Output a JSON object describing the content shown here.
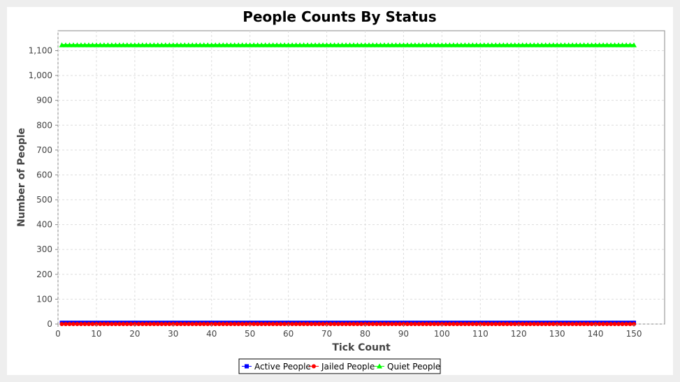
{
  "chart_data": {
    "type": "line",
    "title": "People Counts By Status",
    "xlabel": "Tick Count",
    "ylabel": "Number of People",
    "xlim": [
      0,
      158
    ],
    "ylim": [
      0,
      1180
    ],
    "x_ticks": [
      0,
      10,
      20,
      30,
      40,
      50,
      60,
      70,
      80,
      90,
      100,
      110,
      120,
      130,
      140,
      150
    ],
    "x_tick_labels": [
      "0",
      "10",
      "20",
      "30",
      "40",
      "50",
      "60",
      "70",
      "80",
      "90",
      "100",
      "110",
      "120",
      "130",
      "140",
      "150"
    ],
    "y_ticks": [
      0,
      100,
      200,
      300,
      400,
      500,
      600,
      700,
      800,
      900,
      1000,
      1100
    ],
    "y_tick_labels": [
      "0",
      "100",
      "200",
      "300",
      "400",
      "500",
      "600",
      "700",
      "800",
      "900",
      "1,000",
      "1,100"
    ],
    "grid": true,
    "legend_position": "bottom-center",
    "x_range": [
      1,
      150
    ],
    "series": [
      {
        "name": "Active People",
        "value": 5,
        "color": "#0000ff",
        "marker": "square"
      },
      {
        "name": "Jailed People",
        "value": 0,
        "color": "#ff0000",
        "marker": "circle"
      },
      {
        "name": "Quiet People",
        "value": 1122,
        "color": "#00ff00",
        "marker": "triangle"
      }
    ]
  }
}
